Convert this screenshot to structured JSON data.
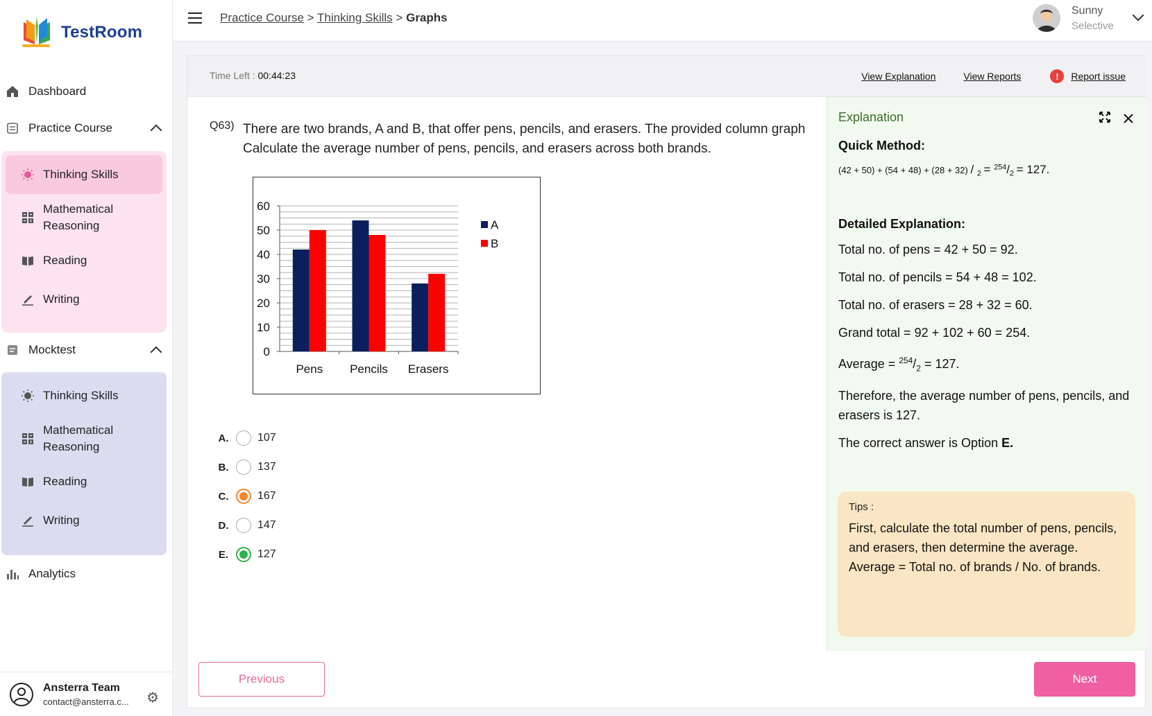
{
  "brand": {
    "name": "TestRoom"
  },
  "sidebar": {
    "dashboard": "Dashboard",
    "practice_course": {
      "label": "Practice Course",
      "items": [
        {
          "label": "Thinking Skills",
          "icon": "bulb-icon"
        },
        {
          "label": "Mathematical Reasoning",
          "icon": "grid-icon"
        },
        {
          "label": "Reading",
          "icon": "book-icon"
        },
        {
          "label": "Writing",
          "icon": "pen-icon"
        }
      ]
    },
    "mocktest": {
      "label": "Mocktest",
      "items": [
        {
          "label": "Thinking Skills",
          "icon": "bulb-icon"
        },
        {
          "label": "Mathematical Reasoning",
          "icon": "grid-icon"
        },
        {
          "label": "Reading",
          "icon": "book-icon"
        },
        {
          "label": "Writing",
          "icon": "pen-icon"
        }
      ]
    },
    "analytics": "Analytics",
    "footer": {
      "name": "Ansterra Team",
      "email": "contact@ansterra.c..."
    }
  },
  "header": {
    "breadcrumb": [
      "Practice Course",
      "Thinking Skills",
      "Graphs"
    ],
    "separator": ">",
    "user": {
      "name": "Sunny",
      "role": "Selective"
    }
  },
  "toolbar": {
    "time_label": "Time Left : ",
    "time_value": "00:44:23",
    "view_explanation": "View Explanation",
    "view_reports": "View Reports",
    "report_issue": "Report issue"
  },
  "question": {
    "number": "Q63)",
    "line1": "There are two brands, A and B, that offer pens, pencils, and erasers. The provided column graph",
    "line2": "Calculate the average number of pens, pencils, and erasers across both brands."
  },
  "chart_data": {
    "type": "bar",
    "categories": [
      "Pens",
      "Pencils",
      "Erasers"
    ],
    "series": [
      {
        "name": "A",
        "values": [
          42,
          54,
          28
        ],
        "color": "#0a1f5c"
      },
      {
        "name": "B",
        "values": [
          50,
          48,
          32
        ],
        "color": "#ff0000"
      }
    ],
    "ylim": [
      0,
      60
    ],
    "yticks": [
      0,
      10,
      20,
      30,
      40,
      50,
      60
    ],
    "grid": true,
    "legend": "right"
  },
  "options": [
    {
      "letter": "A.",
      "value": "107",
      "state": "none"
    },
    {
      "letter": "B.",
      "value": "137",
      "state": "none"
    },
    {
      "letter": "C.",
      "value": "167",
      "state": "selected-wrong"
    },
    {
      "letter": "D.",
      "value": "147",
      "state": "none"
    },
    {
      "letter": "E.",
      "value": "127",
      "state": "correct"
    }
  ],
  "explanation": {
    "title": "Explanation",
    "quick_heading": "Quick Method:",
    "quick_formula": "(42 + 50) + (54 + 48) + (28 + 32)",
    "quick_den": "2",
    "quick_num2": "254",
    "quick_result": "= 127.",
    "detailed_heading": "Detailed Explanation:",
    "lines": [
      "Total no. of pens = 42 + 50 = 92.",
      "Total no. of pencils = 54 + 48 = 102.",
      "Total no. of erasers = 28 + 32 = 60.",
      "Grand total = 92 + 102 + 60 = 254."
    ],
    "average_prefix": "Average = ",
    "average_num": "254",
    "average_den": "2",
    "average_result": " = 127.",
    "therefore": "Therefore, the average number of pens, pencils, and erasers is 127.",
    "answer_prefix": "The correct answer is Option ",
    "answer_option": "E.",
    "tips_label": "Tips :",
    "tips_line1": "First, calculate the total number of pens, pencils, and erasers, then determine the average.",
    "tips_line2": "Average = Total no. of brands / No. of brands."
  },
  "nav": {
    "previous": "Previous",
    "next": "Next"
  },
  "colors": {
    "accent": "#ee60a1",
    "correct": "#2fb34a",
    "wrong": "#f5862b"
  }
}
